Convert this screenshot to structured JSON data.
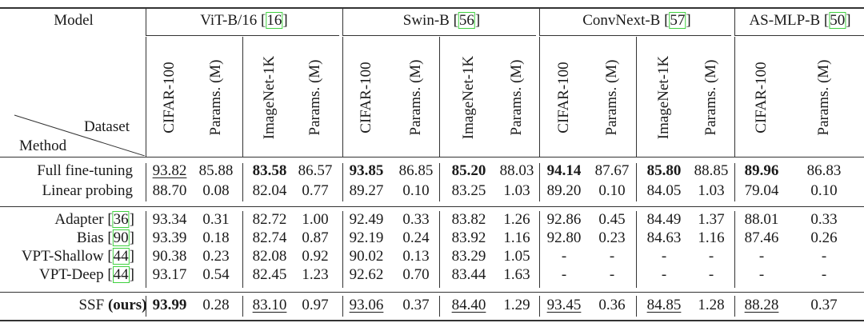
{
  "header": {
    "model_label": "Model",
    "dataset_label": "Dataset",
    "method_label": "Method",
    "groups": [
      {
        "name": "ViT-B/16 [",
        "ref": "16",
        "close": "]"
      },
      {
        "name": "Swin-B [",
        "ref": "56",
        "close": "]"
      },
      {
        "name": "ConvNext-B [",
        "ref": "57",
        "close": "]"
      },
      {
        "name": "AS-MLP-B [",
        "ref": "50",
        "close": "]"
      }
    ],
    "columns": [
      "CIFAR-100",
      "Params. (M)",
      "ImageNet-1K",
      "Params. (M)",
      "CIFAR-100",
      "Params. (M)",
      "ImageNet-1K",
      "Params. (M)",
      "CIFAR-100",
      "Params. (M)",
      "ImageNet-1K",
      "Params. (M)",
      "CIFAR-100",
      "Params. (M)"
    ]
  },
  "ref_color": "#3fd13f",
  "rows": [
    {
      "method": "Full fine-tuning",
      "ref": "",
      "cells": [
        {
          "v": "93.82",
          "u": true
        },
        {
          "v": "85.88"
        },
        {
          "v": "83.58",
          "b": true
        },
        {
          "v": "86.57"
        },
        {
          "v": "93.85",
          "b": true
        },
        {
          "v": "86.85"
        },
        {
          "v": "85.20",
          "b": true
        },
        {
          "v": "88.03"
        },
        {
          "v": "94.14",
          "b": true
        },
        {
          "v": "87.67"
        },
        {
          "v": "85.80",
          "b": true
        },
        {
          "v": "88.85"
        },
        {
          "v": "89.96",
          "b": true
        },
        {
          "v": "86.83"
        }
      ]
    },
    {
      "method": "Linear probing",
      "ref": "",
      "cells": [
        {
          "v": "88.70"
        },
        {
          "v": "0.08"
        },
        {
          "v": "82.04"
        },
        {
          "v": "0.77"
        },
        {
          "v": "89.27"
        },
        {
          "v": "0.10"
        },
        {
          "v": "83.25"
        },
        {
          "v": "1.03"
        },
        {
          "v": "89.20"
        },
        {
          "v": "0.10"
        },
        {
          "v": "84.05"
        },
        {
          "v": "1.03"
        },
        {
          "v": "79.04"
        },
        {
          "v": "0.10"
        }
      ]
    },
    {
      "method": "Adapter [",
      "ref": "36",
      "cells": [
        {
          "v": "93.34"
        },
        {
          "v": "0.31"
        },
        {
          "v": "82.72"
        },
        {
          "v": "1.00"
        },
        {
          "v": "92.49"
        },
        {
          "v": "0.33"
        },
        {
          "v": "83.82"
        },
        {
          "v": "1.26"
        },
        {
          "v": "92.86"
        },
        {
          "v": "0.45"
        },
        {
          "v": "84.49"
        },
        {
          "v": "1.37"
        },
        {
          "v": "88.01"
        },
        {
          "v": "0.33"
        }
      ]
    },
    {
      "method": "Bias [",
      "ref": "90",
      "cells": [
        {
          "v": "93.39"
        },
        {
          "v": "0.18"
        },
        {
          "v": "82.74"
        },
        {
          "v": "0.87"
        },
        {
          "v": "92.19"
        },
        {
          "v": "0.24"
        },
        {
          "v": "83.92"
        },
        {
          "v": "1.16"
        },
        {
          "v": "92.80"
        },
        {
          "v": "0.23"
        },
        {
          "v": "84.63"
        },
        {
          "v": "1.16"
        },
        {
          "v": "87.46"
        },
        {
          "v": "0.26"
        }
      ]
    },
    {
      "method": "VPT-Shallow [",
      "ref": "44",
      "cells": [
        {
          "v": "90.38"
        },
        {
          "v": "0.23"
        },
        {
          "v": "82.08"
        },
        {
          "v": "0.92"
        },
        {
          "v": "90.02"
        },
        {
          "v": "0.13"
        },
        {
          "v": "83.29"
        },
        {
          "v": "1.05"
        },
        {
          "v": "-"
        },
        {
          "v": "-"
        },
        {
          "v": "-"
        },
        {
          "v": "-"
        },
        {
          "v": "-"
        },
        {
          "v": "-"
        }
      ]
    },
    {
      "method": "VPT-Deep [",
      "ref": "44",
      "cells": [
        {
          "v": "93.17"
        },
        {
          "v": "0.54"
        },
        {
          "v": "82.45"
        },
        {
          "v": "1.23"
        },
        {
          "v": "92.62"
        },
        {
          "v": "0.70"
        },
        {
          "v": "83.44"
        },
        {
          "v": "1.63"
        },
        {
          "v": "-"
        },
        {
          "v": "-"
        },
        {
          "v": "-"
        },
        {
          "v": "-"
        },
        {
          "v": "-"
        },
        {
          "v": "-"
        }
      ]
    },
    {
      "method": "SSF ",
      "method_bold": "(ours)",
      "ref": "",
      "cells": [
        {
          "v": "93.99",
          "b": true
        },
        {
          "v": "0.28"
        },
        {
          "v": "83.10",
          "u": true
        },
        {
          "v": "0.97"
        },
        {
          "v": "93.06",
          "u": true
        },
        {
          "v": "0.37"
        },
        {
          "v": "84.40",
          "u": true
        },
        {
          "v": "1.29"
        },
        {
          "v": "93.45",
          "u": true
        },
        {
          "v": "0.36"
        },
        {
          "v": "84.85",
          "u": true
        },
        {
          "v": "1.28"
        },
        {
          "v": "88.28",
          "u": true
        },
        {
          "v": "0.37"
        }
      ]
    }
  ]
}
